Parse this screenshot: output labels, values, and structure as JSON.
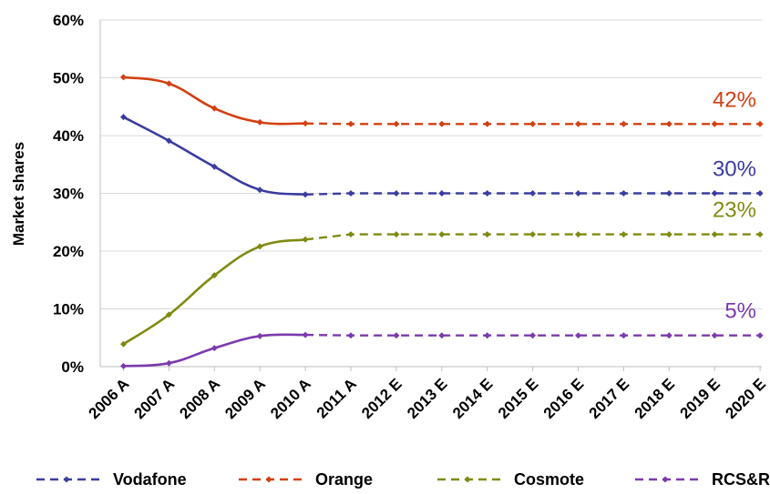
{
  "chart_data": {
    "type": "line",
    "ylabel": "Market shares",
    "ylim": [
      0,
      60
    ],
    "yticks": [
      0,
      10,
      20,
      30,
      40,
      50,
      60
    ],
    "ytick_labels": [
      "0%",
      "10%",
      "20%",
      "30%",
      "40%",
      "50%",
      "60%"
    ],
    "categories": [
      "2006 A",
      "2007 A",
      "2008 A",
      "2009 A",
      "2010 A",
      "2011 A",
      "2012 E",
      "2013 E",
      "2014 E",
      "2015 E",
      "2016 E",
      "2017 E",
      "2018 E",
      "2019 E",
      "2020 E"
    ],
    "actual_through_index": 4,
    "grid": true,
    "legend_position": "bottom",
    "series": [
      {
        "name": "Vodafone",
        "color": "#3B3C9E",
        "end_label": "30%",
        "values": [
          43.2,
          39.1,
          34.6,
          30.6,
          29.8,
          30.0,
          30.0,
          30.0,
          30.0,
          30.0,
          30.0,
          30.0,
          30.0,
          30.0,
          30.0
        ]
      },
      {
        "name": "Orange",
        "color": "#D23F10",
        "end_label": "42%",
        "values": [
          50.1,
          49.0,
          44.7,
          42.3,
          42.1,
          42.0,
          42.0,
          42.0,
          42.0,
          42.0,
          42.0,
          42.0,
          42.0,
          42.0,
          42.0
        ]
      },
      {
        "name": "Cosmote",
        "color": "#7F8A10",
        "end_label": "23%",
        "values": [
          3.9,
          9.0,
          15.8,
          20.8,
          22.0,
          22.9,
          22.9,
          22.9,
          22.9,
          22.9,
          22.9,
          22.9,
          22.9,
          22.9,
          22.9
        ]
      },
      {
        "name": "RCS&RDS",
        "color": "#7A3AAE",
        "end_label": "5%",
        "values": [
          0.1,
          0.6,
          3.2,
          5.3,
          5.5,
          5.4,
          5.4,
          5.4,
          5.4,
          5.4,
          5.4,
          5.4,
          5.4,
          5.4,
          5.4
        ]
      }
    ]
  }
}
